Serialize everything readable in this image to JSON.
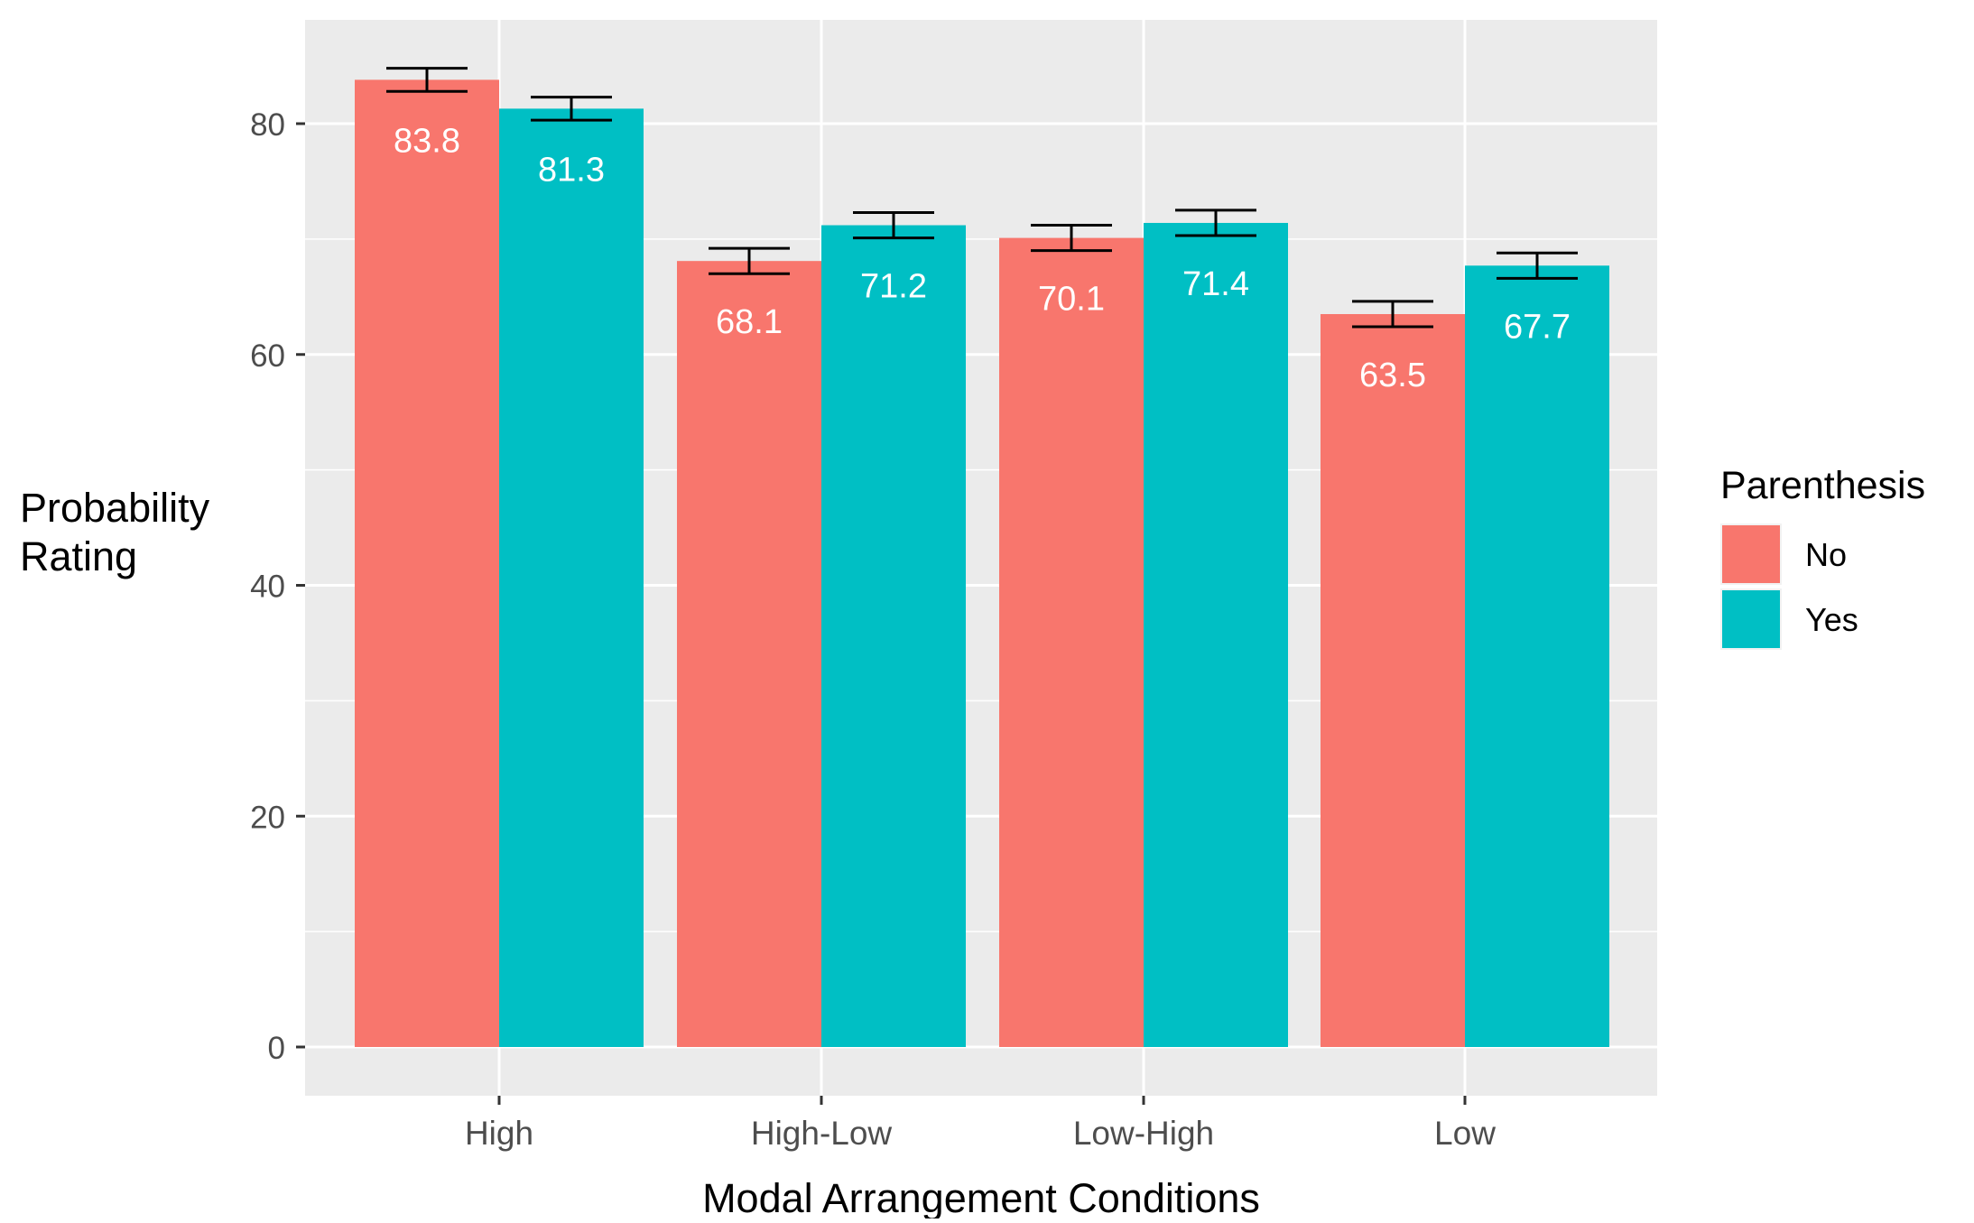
{
  "chart_data": {
    "type": "bar",
    "title": "",
    "xlabel": "Modal Arrangement Conditions",
    "ylabel": [
      "Probability",
      "Rating"
    ],
    "categories": [
      "High",
      "High-Low",
      "Low-High",
      "Low"
    ],
    "ylim": [
      0,
      88.9
    ],
    "yticks": [
      0,
      20,
      40,
      60,
      80
    ],
    "grid": true,
    "legend": {
      "title": "Parenthesis",
      "position": "right"
    },
    "series": [
      {
        "name": "No",
        "color": "#F8766D",
        "values": [
          83.8,
          68.1,
          70.1,
          63.5
        ],
        "labels": [
          "83.8",
          "68.1",
          "70.1",
          "63.5"
        ],
        "error_low": [
          82.8,
          67.0,
          69.0,
          62.4
        ],
        "error_high": [
          84.8,
          69.2,
          71.2,
          64.6
        ]
      },
      {
        "name": "Yes",
        "color": "#00BFC4",
        "values": [
          81.3,
          71.2,
          71.4,
          67.7
        ],
        "labels": [
          "81.3",
          "71.2",
          "71.4",
          "67.7"
        ],
        "error_low": [
          80.3,
          70.1,
          70.3,
          66.6
        ],
        "error_high": [
          82.3,
          72.3,
          72.5,
          68.8
        ]
      }
    ]
  }
}
